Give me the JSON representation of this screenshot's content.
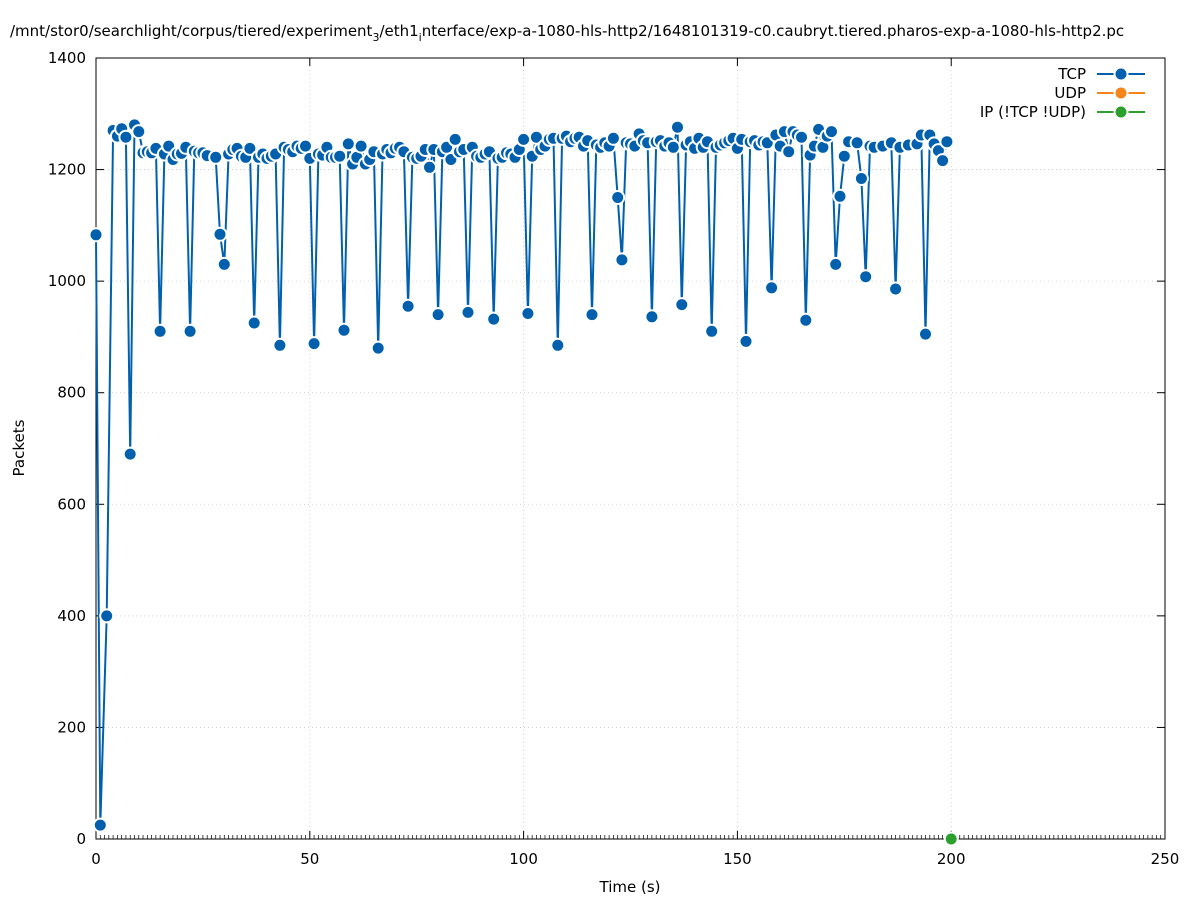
{
  "chart_data": {
    "type": "line",
    "title_parts": [
      "/mnt/stor0/searchlight/corpus/tiered/experiment",
      "3",
      "/eth1",
      "i",
      "nterface/exp-a-1080-hls-http2/1648101319-c0.caubryt.tiered.pharos-exp-a-1080-hls-http2.pc"
    ],
    "xlabel": "Time (s)",
    "ylabel": "Packets",
    "xlim": [
      0,
      250
    ],
    "ylim": [
      0,
      1400
    ],
    "xticks": [
      0,
      50,
      100,
      150,
      200,
      250
    ],
    "yticks": [
      0,
      200,
      400,
      600,
      800,
      1000,
      1200,
      1400
    ],
    "grid": true,
    "legend_position": "top-right",
    "series": [
      {
        "name": "TCP",
        "color": "#0060ad",
        "points": [
          [
            0,
            1083
          ],
          [
            1,
            25
          ],
          [
            2.5,
            400
          ],
          [
            4,
            1270
          ],
          [
            5,
            1260
          ],
          [
            6,
            1273
          ],
          [
            7,
            1258
          ],
          [
            8,
            690
          ],
          [
            9,
            1280
          ],
          [
            10,
            1268
          ],
          [
            11,
            1230
          ],
          [
            12,
            1232
          ],
          [
            13,
            1230
          ],
          [
            14,
            1238
          ],
          [
            15,
            910
          ],
          [
            16,
            1228
          ],
          [
            17,
            1242
          ],
          [
            18,
            1218
          ],
          [
            19,
            1228
          ],
          [
            20,
            1229
          ],
          [
            21,
            1240
          ],
          [
            22,
            910
          ],
          [
            23,
            1233
          ],
          [
            24,
            1230
          ],
          [
            25,
            1230
          ],
          [
            26,
            1225
          ],
          [
            28,
            1222
          ],
          [
            29,
            1084
          ],
          [
            30,
            1030
          ],
          [
            31,
            1228
          ],
          [
            32,
            1236
          ],
          [
            33,
            1238
          ],
          [
            34,
            1224
          ],
          [
            35,
            1222
          ],
          [
            36,
            1238
          ],
          [
            37,
            925
          ],
          [
            38,
            1222
          ],
          [
            39,
            1228
          ],
          [
            40,
            1220
          ],
          [
            41,
            1224
          ],
          [
            42,
            1228
          ],
          [
            43,
            885
          ],
          [
            44,
            1240
          ],
          [
            45,
            1236
          ],
          [
            46,
            1232
          ],
          [
            47,
            1242
          ],
          [
            48,
            1238
          ],
          [
            49,
            1242
          ],
          [
            50,
            1220
          ],
          [
            51,
            888
          ],
          [
            52,
            1228
          ],
          [
            53,
            1226
          ],
          [
            54,
            1240
          ],
          [
            55,
            1222
          ],
          [
            56,
            1222
          ],
          [
            57,
            1224
          ],
          [
            58,
            912
          ],
          [
            59,
            1246
          ],
          [
            60,
            1210
          ],
          [
            61,
            1222
          ],
          [
            62,
            1242
          ],
          [
            63,
            1210
          ],
          [
            64,
            1218
          ],
          [
            65,
            1232
          ],
          [
            66,
            880
          ],
          [
            67,
            1228
          ],
          [
            68,
            1236
          ],
          [
            69,
            1230
          ],
          [
            70,
            1238
          ],
          [
            71,
            1240
          ],
          [
            72,
            1232
          ],
          [
            73,
            955
          ],
          [
            74,
            1222
          ],
          [
            75,
            1220
          ],
          [
            76,
            1224
          ],
          [
            77,
            1236
          ],
          [
            78,
            1204
          ],
          [
            79,
            1236
          ],
          [
            80,
            940
          ],
          [
            81,
            1232
          ],
          [
            82,
            1240
          ],
          [
            83,
            1218
          ],
          [
            84,
            1254
          ],
          [
            85,
            1232
          ],
          [
            86,
            1236
          ],
          [
            87,
            944
          ],
          [
            88,
            1240
          ],
          [
            89,
            1224
          ],
          [
            90,
            1222
          ],
          [
            91,
            1228
          ],
          [
            92,
            1232
          ],
          [
            93,
            932
          ],
          [
            94,
            1220
          ],
          [
            95,
            1222
          ],
          [
            96,
            1230
          ],
          [
            97,
            1228
          ],
          [
            98,
            1222
          ],
          [
            99,
            1236
          ],
          [
            100,
            1254
          ],
          [
            101,
            942
          ],
          [
            102,
            1224
          ],
          [
            103,
            1258
          ],
          [
            104,
            1236
          ],
          [
            105,
            1242
          ],
          [
            106,
            1254
          ],
          [
            107,
            1256
          ],
          [
            108,
            885
          ],
          [
            109,
            1256
          ],
          [
            110,
            1260
          ],
          [
            111,
            1250
          ],
          [
            112,
            1256
          ],
          [
            113,
            1258
          ],
          [
            114,
            1242
          ],
          [
            115,
            1252
          ],
          [
            116,
            940
          ],
          [
            117,
            1244
          ],
          [
            118,
            1240
          ],
          [
            119,
            1248
          ],
          [
            120,
            1242
          ],
          [
            121,
            1256
          ],
          [
            122,
            1150
          ],
          [
            123,
            1038
          ],
          [
            124,
            1248
          ],
          [
            125,
            1246
          ],
          [
            126,
            1242
          ],
          [
            127,
            1264
          ],
          [
            128,
            1252
          ],
          [
            129,
            1248
          ],
          [
            130,
            936
          ],
          [
            131,
            1250
          ],
          [
            132,
            1252
          ],
          [
            133,
            1242
          ],
          [
            134,
            1248
          ],
          [
            135,
            1240
          ],
          [
            136,
            1276
          ],
          [
            137,
            958
          ],
          [
            138,
            1244
          ],
          [
            139,
            1250
          ],
          [
            140,
            1238
          ],
          [
            141,
            1256
          ],
          [
            142,
            1240
          ],
          [
            143,
            1250
          ],
          [
            144,
            910
          ],
          [
            145,
            1240
          ],
          [
            146,
            1244
          ],
          [
            147,
            1248
          ],
          [
            148,
            1252
          ],
          [
            149,
            1256
          ],
          [
            150,
            1238
          ],
          [
            151,
            1254
          ],
          [
            152,
            892
          ],
          [
            153,
            1250
          ],
          [
            154,
            1252
          ],
          [
            155,
            1244
          ],
          [
            156,
            1250
          ],
          [
            157,
            1248
          ],
          [
            158,
            988
          ],
          [
            159,
            1262
          ],
          [
            160,
            1242
          ],
          [
            161,
            1268
          ],
          [
            162,
            1232
          ],
          [
            163,
            1268
          ],
          [
            164,
            1262
          ],
          [
            165,
            1258
          ],
          [
            166,
            930
          ],
          [
            167,
            1226
          ],
          [
            168,
            1242
          ],
          [
            169,
            1272
          ],
          [
            170,
            1240
          ],
          [
            171,
            1260
          ],
          [
            172,
            1268
          ],
          [
            173,
            1030
          ],
          [
            174,
            1152
          ],
          [
            175,
            1224
          ],
          [
            176,
            1250
          ],
          [
            178,
            1248
          ],
          [
            179,
            1184
          ],
          [
            180,
            1008
          ],
          [
            181,
            1242
          ],
          [
            182,
            1240
          ],
          [
            184,
            1242
          ],
          [
            186,
            1248
          ],
          [
            187,
            986
          ],
          [
            188,
            1240
          ],
          [
            190,
            1244
          ],
          [
            192,
            1246
          ],
          [
            193,
            1262
          ],
          [
            194,
            905
          ],
          [
            195,
            1262
          ],
          [
            196,
            1246
          ],
          [
            197,
            1234
          ],
          [
            198,
            1216
          ],
          [
            199,
            1250
          ]
        ]
      },
      {
        "name": "UDP",
        "color": "#f58518",
        "points": []
      },
      {
        "name": "IP (!TCP  !UDP)",
        "color": "#2ca02c",
        "points": [
          [
            200,
            0
          ]
        ]
      }
    ]
  }
}
